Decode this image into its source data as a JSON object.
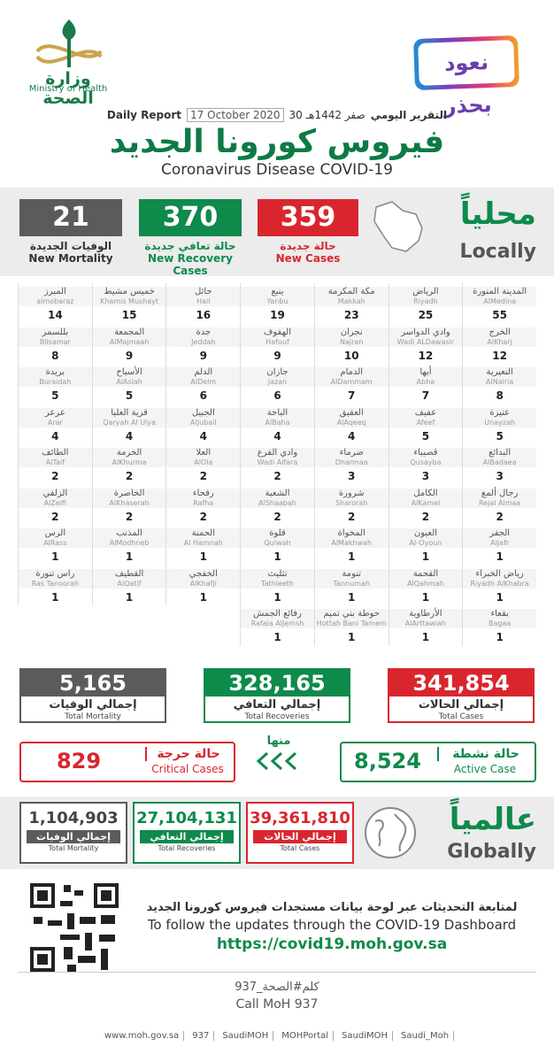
{
  "header": {
    "logo_ar": "وزارة الصحة",
    "logo_en": "Ministry of Health",
    "campaign": "نعود بحذر",
    "report_ar": "التقرير اليومي",
    "date_hijri": "30 صفر 1442هـ",
    "date": "17 October 2020",
    "report_en": "Daily Report",
    "title": "فيروس كورونا الجديد",
    "subtitle": "Coronavirus Disease COVID-19"
  },
  "locally": {
    "title": "محلياً",
    "title_en": "Locally",
    "new_cases": {
      "value": "359",
      "ar": "حالة جديدة",
      "en": "New Cases"
    },
    "new_recoveries": {
      "value": "370",
      "ar": "حالة تعافي جديدة",
      "en": "New Recovery Cases"
    },
    "new_mortality": {
      "value": "21",
      "ar": "الوفيات الجديدة",
      "en": "New Mortality"
    }
  },
  "cities": [
    {
      "ar": "المدينة المنورة",
      "en": "AlMedina",
      "cases": "55"
    },
    {
      "ar": "الرياض",
      "en": "Riyadh",
      "cases": "25"
    },
    {
      "ar": "مكة المكرمة",
      "en": "Makkah",
      "cases": "23"
    },
    {
      "ar": "ينبع",
      "en": "Yanbu",
      "cases": "19"
    },
    {
      "ar": "حائل",
      "en": "Hail",
      "cases": "16"
    },
    {
      "ar": "خميس مشيط",
      "en": "Khamis Mushayt",
      "cases": "15"
    },
    {
      "ar": "المبرز",
      "en": "almobaraz",
      "cases": "14"
    },
    {
      "ar": "الخرج",
      "en": "AlKharj",
      "cases": "12"
    },
    {
      "ar": "وادي الدواسر",
      "en": "Wadi ALDawasir",
      "cases": "12"
    },
    {
      "ar": "نجران",
      "en": "Najran",
      "cases": "10"
    },
    {
      "ar": "الهفوف",
      "en": "Hafouf",
      "cases": "9"
    },
    {
      "ar": "جدة",
      "en": "Jeddah",
      "cases": "9"
    },
    {
      "ar": "المجمعة",
      "en": "AlMajmaah",
      "cases": "9"
    },
    {
      "ar": "بللسمر",
      "en": "Bllsamar",
      "cases": "8"
    },
    {
      "ar": "النعيرية",
      "en": "AlNairia",
      "cases": "8"
    },
    {
      "ar": "أبها",
      "en": "Abha",
      "cases": "7"
    },
    {
      "ar": "الدمام",
      "en": "AlDammam",
      "cases": "7"
    },
    {
      "ar": "جازان",
      "en": "Jazan",
      "cases": "6"
    },
    {
      "ar": "الدلم",
      "en": "AlDelm",
      "cases": "6"
    },
    {
      "ar": "الأسياح",
      "en": "AlAsiah",
      "cases": "5"
    },
    {
      "ar": "بريدة",
      "en": "Buraidah",
      "cases": "5"
    },
    {
      "ar": "عنيزة",
      "en": "Unayzah",
      "cases": "5"
    },
    {
      "ar": "عفيف",
      "en": "Afeef",
      "cases": "5"
    },
    {
      "ar": "العقيق",
      "en": "AlAqeeq",
      "cases": "4"
    },
    {
      "ar": "الباحة",
      "en": "AlBaha",
      "cases": "4"
    },
    {
      "ar": "الجبيل",
      "en": "AlJubail",
      "cases": "4"
    },
    {
      "ar": "قرية العليا",
      "en": "Qaryah Al Ulya",
      "cases": "4"
    },
    {
      "ar": "عرعر",
      "en": "Arar",
      "cases": "4"
    },
    {
      "ar": "البدائع",
      "en": "AlBadaea",
      "cases": "3"
    },
    {
      "ar": "قصيباء",
      "en": "Qusayba",
      "cases": "3"
    },
    {
      "ar": "ضرماء",
      "en": "Dharmaa",
      "cases": "3"
    },
    {
      "ar": "وادي الفرع",
      "en": "Wadi Alfara",
      "cases": "2"
    },
    {
      "ar": "العلا",
      "en": "AlOla",
      "cases": "2"
    },
    {
      "ar": "الخرمة",
      "en": "AlKhurma",
      "cases": "2"
    },
    {
      "ar": "الطائف",
      "en": "AlTaif",
      "cases": "2"
    },
    {
      "ar": "رجال ألمع",
      "en": "Rejal Almaa",
      "cases": "2"
    },
    {
      "ar": "الكامل",
      "en": "AlKamel",
      "cases": "2"
    },
    {
      "ar": "شرورة",
      "en": "Sharorah",
      "cases": "2"
    },
    {
      "ar": "الشعبة",
      "en": "AlShaabah",
      "cases": "2"
    },
    {
      "ar": "رفحاء",
      "en": "Rafha",
      "cases": "2"
    },
    {
      "ar": "الخاصرة",
      "en": "AlKhaserah",
      "cases": "2"
    },
    {
      "ar": "الزلفي",
      "en": "AlZelfi",
      "cases": "2"
    },
    {
      "ar": "الجفر",
      "en": "AlJafr",
      "cases": "1"
    },
    {
      "ar": "العيون",
      "en": "Al-Oyoun",
      "cases": "1"
    },
    {
      "ar": "المخواة",
      "en": "AlMakhwah",
      "cases": "1"
    },
    {
      "ar": "قلوة",
      "en": "Qulwah",
      "cases": "1"
    },
    {
      "ar": "الحمنة",
      "en": "Al Hamnah",
      "cases": "1"
    },
    {
      "ar": "المذنب",
      "en": "AlModhneb",
      "cases": "1"
    },
    {
      "ar": "الرس",
      "en": "AlRass",
      "cases": "1"
    },
    {
      "ar": "رياض الخبراء",
      "en": "Riyadh AlKhabra",
      "cases": "1"
    },
    {
      "ar": "القحمة",
      "en": "AlQahmah",
      "cases": "1"
    },
    {
      "ar": "تنومة",
      "en": "Tannumah",
      "cases": "1"
    },
    {
      "ar": "تثليث",
      "en": "Tathleeth",
      "cases": "1"
    },
    {
      "ar": "الخفجي",
      "en": "AlKhafji",
      "cases": "1"
    },
    {
      "ar": "القطيف",
      "en": "AlQatif",
      "cases": "1"
    },
    {
      "ar": "راس تنورة",
      "en": "Ras Tanoorah",
      "cases": "1"
    },
    {
      "ar": "بقعاء",
      "en": "Bagaa",
      "cases": "1"
    },
    {
      "ar": "الأرطاوية",
      "en": "AlArttawiah",
      "cases": "1"
    },
    {
      "ar": "حوطة بني تميم",
      "en": "Hottah Bani Tamem",
      "cases": "1"
    },
    {
      "ar": "رفائع الجمش",
      "en": "Rafaia AlJemsh",
      "cases": "1"
    }
  ],
  "totals": {
    "cases": {
      "value": "341,854",
      "ar": "إجمالي الحالات",
      "en": "Total Cases"
    },
    "recoveries": {
      "value": "328,165",
      "ar": "إجمالي التعافي",
      "en": "Total Recoveries"
    },
    "mortality": {
      "value": "5,165",
      "ar": "إجمالي الوفيات",
      "en": "Total Mortality"
    },
    "of_which": "منها",
    "active": {
      "value": "8,524",
      "ar": "حالة نشطة",
      "en": "Active Case"
    },
    "critical": {
      "value": "829",
      "ar": "حالة حرجة",
      "en": "Critical Cases"
    }
  },
  "globally": {
    "title": "عالمياً",
    "title_en": "Globally",
    "cases": {
      "value": "39,361,810",
      "ar": "إجمالي الحالات",
      "en": "Total Cases"
    },
    "recoveries": {
      "value": "27,104,131",
      "ar": "إجمالي التعافي",
      "en": "Total Recoveries"
    },
    "mortality": {
      "value": "1,104,903",
      "ar": "إجمالي الوفيات",
      "en": "Total Mortality"
    }
  },
  "footer": {
    "follow_ar": "لمتابعة التحديثات عبر لوحة بيانات مستجدات فيروس كورونا الجديد",
    "follow_en": "To follow the updates through the COVID-19 Dashboard",
    "url": "https://covid19.moh.gov.sa",
    "hashtag": "كلم#الصحة_937",
    "call": "Call MoH 937",
    "social": [
      "www.moh.gov.sa",
      "937",
      "SaudiMOH",
      "MOHPortal",
      "SaudiMOH",
      "Saudi_Moh"
    ]
  }
}
